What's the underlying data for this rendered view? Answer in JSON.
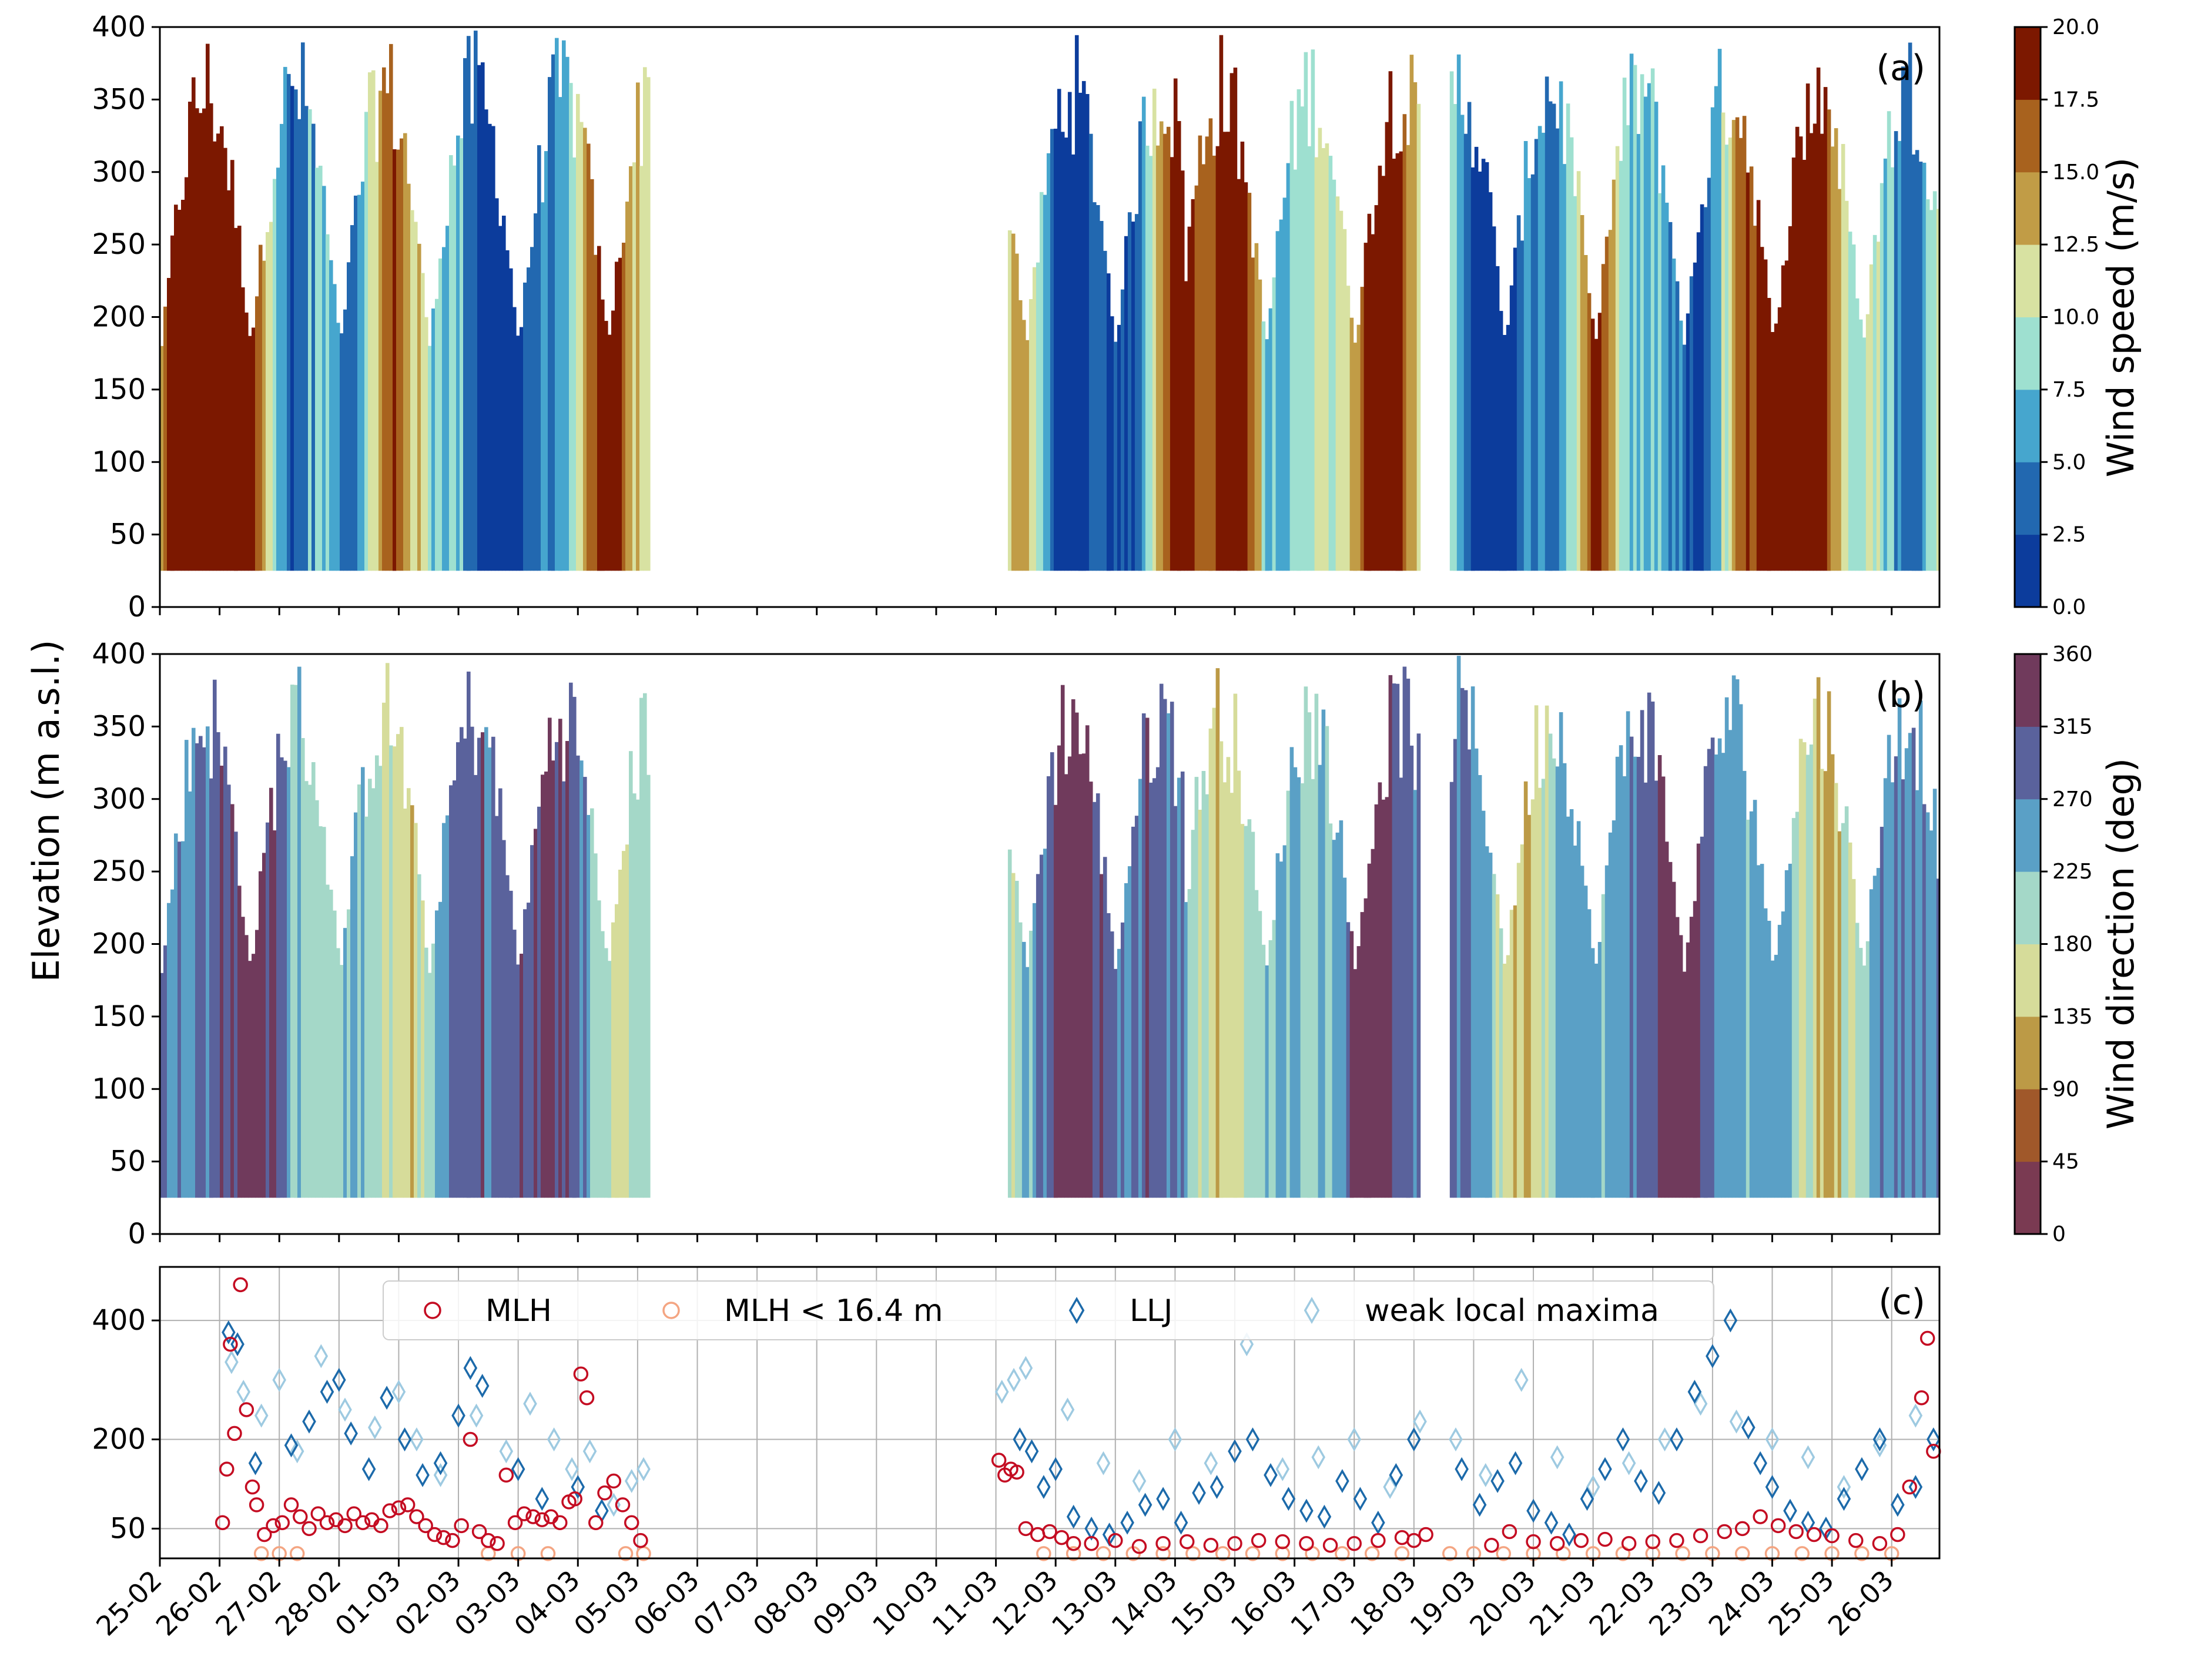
{
  "chart_data": [
    {
      "panel_label": "(a)",
      "type": "heatmap",
      "quantity": "wind speed",
      "ylabel": "",
      "ylim": [
        0,
        400
      ],
      "yticks": [
        0,
        50,
        100,
        150,
        200,
        250,
        300,
        350,
        400
      ],
      "x_dates": [
        "25-02",
        "26-02",
        "27-02",
        "28-02",
        "01-03",
        "02-03",
        "03-03",
        "04-03",
        "05-03",
        "06-03",
        "07-03",
        "08-03",
        "09-03",
        "10-03",
        "11-03",
        "12-03",
        "13-03",
        "14-03",
        "15-03",
        "16-03",
        "17-03",
        "18-03",
        "19-03",
        "20-03",
        "21-03",
        "22-03",
        "23-03",
        "24-03",
        "25-03",
        "26-03"
      ],
      "data_segments_days": [
        [
          0.0,
          8.15
        ],
        [
          14.2,
          17.1
        ],
        [
          17.15,
          21.1
        ],
        [
          21.6,
          29.8
        ]
      ],
      "data_bottom_m": 25,
      "colorbar": {
        "label": "Wind speed (m/s)",
        "ticks": [
          "0.0",
          "2.5",
          "5.0",
          "7.5",
          "10.0",
          "12.5",
          "15.0",
          "17.5",
          "20.0"
        ],
        "colors": [
          "#0c3c9c",
          "#2268b0",
          "#46a6ce",
          "#9ee0d0",
          "#d8e2a2",
          "#c19c46",
          "#a8621e",
          "#7c1800"
        ]
      }
    },
    {
      "panel_label": "(b)",
      "type": "heatmap",
      "quantity": "wind direction",
      "ylabel": "Elevation (m a.s.l.)",
      "ylim": [
        0,
        400
      ],
      "yticks": [
        0,
        50,
        100,
        150,
        200,
        250,
        300,
        350,
        400
      ],
      "data_segments_days": [
        [
          0.0,
          8.15
        ],
        [
          14.2,
          17.1
        ],
        [
          17.15,
          21.1
        ],
        [
          21.6,
          29.8
        ]
      ],
      "colorbar": {
        "label": "Wind direction (deg)",
        "ticks": [
          "0",
          "45",
          "90",
          "135",
          "180",
          "225",
          "270",
          "315",
          "360"
        ],
        "colors": [
          "#7a3a52",
          "#a0582a",
          "#bc9a46",
          "#d6dc9a",
          "#a4d8c8",
          "#5aa0c6",
          "#5a629c",
          "#703a5c"
        ]
      }
    },
    {
      "panel_label": "(c)",
      "type": "scatter",
      "yticks": [
        50,
        200,
        400
      ],
      "ylim": [
        0,
        490
      ],
      "grid": true,
      "legend": {
        "position": "top",
        "entries": [
          "MLH",
          "MLH < 16.4 m",
          "LLJ",
          "weak local maxima"
        ]
      },
      "series": [
        {
          "name": "MLH",
          "color": "#c40c22",
          "marker": "circle",
          "x": [
            1.05,
            1.12,
            1.18,
            1.25,
            1.35,
            1.45,
            1.55,
            1.62,
            1.75,
            1.9,
            2.05,
            2.2,
            2.35,
            2.5,
            2.65,
            2.8,
            2.95,
            3.1,
            3.25,
            3.4,
            3.55,
            3.7,
            3.85,
            4.0,
            4.15,
            4.3,
            4.45,
            4.6,
            4.75,
            4.9,
            5.05,
            5.2,
            5.35,
            5.5,
            5.65,
            5.8,
            5.95,
            6.1,
            6.25,
            6.4,
            6.55,
            6.7,
            6.85,
            6.95,
            7.05,
            7.15,
            7.3,
            7.45,
            7.6,
            7.75,
            7.9,
            8.05,
            14.05,
            14.15,
            14.25,
            14.35,
            14.5,
            14.7,
            14.9,
            15.1,
            15.3,
            15.6,
            16.0,
            16.4,
            16.8,
            17.2,
            17.6,
            18.0,
            18.4,
            18.8,
            19.2,
            19.6,
            20.0,
            20.4,
            20.8,
            21.0,
            21.2,
            22.3,
            22.6,
            23.0,
            23.4,
            23.8,
            24.2,
            24.6,
            25.0,
            25.4,
            25.8,
            26.2,
            26.5,
            26.8,
            27.1,
            27.4,
            27.7,
            28.0,
            28.4,
            28.8,
            29.1,
            29.3,
            29.5,
            29.6,
            29.7
          ],
          "y": [
            60,
            150,
            360,
            210,
            460,
            250,
            120,
            90,
            40,
            55,
            60,
            90,
            70,
            50,
            75,
            60,
            65,
            55,
            75,
            60,
            65,
            55,
            80,
            85,
            90,
            70,
            55,
            40,
            35,
            30,
            55,
            200,
            45,
            30,
            25,
            140,
            60,
            75,
            70,
            65,
            70,
            60,
            95,
            100,
            310,
            270,
            60,
            110,
            130,
            90,
            60,
            30,
            165,
            140,
            150,
            145,
            50,
            40,
            45,
            35,
            25,
            25,
            30,
            20,
            25,
            28,
            22,
            25,
            30,
            28,
            25,
            22,
            25,
            30,
            35,
            30,
            40,
            22,
            45,
            28,
            25,
            30,
            32,
            25,
            28,
            30,
            38,
            45,
            50,
            70,
            55,
            45,
            40,
            38,
            30,
            25,
            40,
            120,
            270,
            370,
            180
          ]
        },
        {
          "name": "MLH < 16.4 m",
          "color": "#f4a582",
          "marker": "circle",
          "x": [
            1.7,
            2.0,
            2.3,
            5.5,
            6.0,
            6.5,
            7.8,
            8.1,
            14.8,
            15.3,
            15.8,
            16.3,
            16.8,
            17.3,
            17.8,
            18.3,
            18.8,
            19.3,
            19.8,
            20.3,
            20.8,
            21.6,
            22.0,
            22.5,
            23.0,
            23.5,
            24.0,
            24.5,
            25.0,
            25.5,
            26.0,
            26.5,
            27.0,
            27.5,
            28.0,
            28.5,
            29.0
          ],
          "y": [
            8,
            8,
            8,
            8,
            8,
            8,
            8,
            8,
            8,
            8,
            8,
            8,
            8,
            8,
            8,
            8,
            8,
            8,
            8,
            8,
            8,
            8,
            8,
            8,
            8,
            8,
            8,
            8,
            8,
            8,
            8,
            8,
            8,
            8,
            8,
            8,
            8
          ]
        },
        {
          "name": "LLJ",
          "color": "#1c6aaa",
          "marker": "diamond",
          "x": [
            1.15,
            1.3,
            1.6,
            2.2,
            2.5,
            2.8,
            3.0,
            3.2,
            3.5,
            3.8,
            4.1,
            4.4,
            4.7,
            5.0,
            5.2,
            5.4,
            6.0,
            6.4,
            7.0,
            7.4,
            14.4,
            14.6,
            14.8,
            15.0,
            15.3,
            15.6,
            15.9,
            16.2,
            16.5,
            16.8,
            17.1,
            17.4,
            17.7,
            18.0,
            18.3,
            18.6,
            18.9,
            19.2,
            19.5,
            19.8,
            20.1,
            20.4,
            20.7,
            21.0,
            21.8,
            22.1,
            22.4,
            22.7,
            23.0,
            23.3,
            23.6,
            23.9,
            24.2,
            24.5,
            24.8,
            25.1,
            25.4,
            25.7,
            26.0,
            26.3,
            26.6,
            26.8,
            27.0,
            27.3,
            27.6,
            27.9,
            28.2,
            28.5,
            28.8,
            29.1,
            29.4,
            29.7
          ],
          "y": [
            380,
            360,
            160,
            190,
            230,
            280,
            300,
            210,
            150,
            270,
            200,
            140,
            160,
            240,
            320,
            290,
            150,
            100,
            120,
            80,
            200,
            180,
            120,
            150,
            70,
            50,
            40,
            60,
            90,
            100,
            60,
            110,
            120,
            180,
            200,
            140,
            100,
            80,
            70,
            130,
            100,
            60,
            140,
            200,
            150,
            90,
            130,
            160,
            80,
            60,
            40,
            100,
            150,
            200,
            130,
            110,
            200,
            280,
            340,
            400,
            220,
            160,
            120,
            80,
            60,
            50,
            100,
            150,
            200,
            90,
            120,
            200
          ]
        },
        {
          "name": "weak local maxima",
          "color": "#9ecae1",
          "marker": "diamond",
          "x": [
            1.2,
            1.4,
            1.7,
            2.0,
            2.3,
            2.7,
            3.1,
            3.6,
            4.0,
            4.3,
            4.7,
            5.3,
            5.8,
            6.2,
            6.6,
            6.9,
            7.2,
            7.6,
            7.9,
            8.1,
            14.1,
            14.3,
            14.5,
            15.2,
            15.8,
            16.4,
            17.0,
            17.6,
            18.2,
            18.8,
            19.4,
            20.0,
            20.6,
            21.1,
            21.7,
            22.2,
            22.8,
            23.4,
            24.0,
            24.6,
            25.2,
            25.8,
            26.4,
            27.0,
            27.6,
            28.2,
            28.8,
            29.4
          ],
          "y": [
            330,
            280,
            240,
            300,
            180,
            340,
            250,
            220,
            280,
            200,
            140,
            240,
            180,
            260,
            200,
            150,
            180,
            90,
            130,
            150,
            280,
            300,
            320,
            250,
            160,
            130,
            200,
            160,
            360,
            150,
            170,
            200,
            120,
            230,
            200,
            140,
            300,
            170,
            120,
            160,
            200,
            260,
            230,
            200,
            170,
            120,
            190,
            240
          ]
        }
      ]
    }
  ]
}
